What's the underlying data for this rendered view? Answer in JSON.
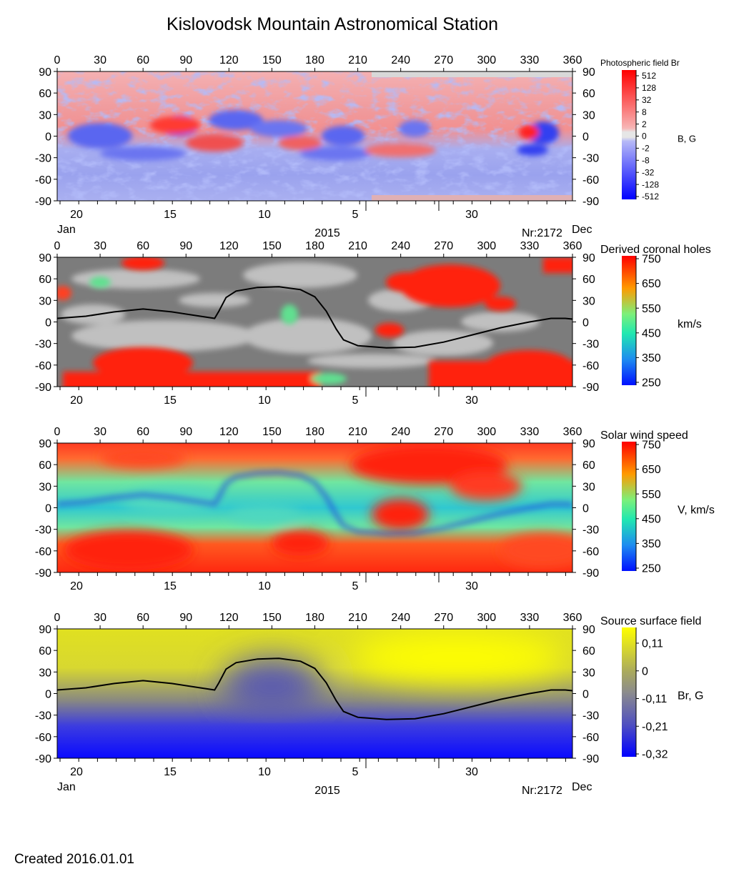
{
  "title": "Kislovodsk Mountain Astronomical Station",
  "created": "Created  2016.01.01",
  "colors": {
    "red": "#ff1a10",
    "blue": "#1a2cff",
    "gray_light": "#c0c0c0",
    "gray_dark": "#7a7a7a",
    "yellow": "#ffff00"
  },
  "chart_data": [
    {
      "type": "heatmap",
      "title": "Photospheric field Br",
      "unit_label": "B, G",
      "xlim": [
        0,
        360
      ],
      "ylim": [
        -90,
        90
      ],
      "x_ticks": [
        "0",
        "30",
        "60",
        "90",
        "120",
        "150",
        "180",
        "210",
        "240",
        "270",
        "300",
        "330",
        "360"
      ],
      "y_ticks": [
        "90",
        "60",
        "30",
        "0",
        "-30",
        "-60",
        "-90"
      ],
      "date_ticks": [
        "20",
        "15",
        "10",
        "5",
        "30"
      ],
      "month_left": "Jan",
      "month_right": "Dec",
      "year": "2015",
      "rotation": "Nr:2172",
      "colorbar": {
        "scale": "log-symmetric",
        "labels": [
          "512",
          "128",
          "32",
          "8",
          "2",
          "0",
          "-2",
          "-8",
          "-32",
          "-128",
          "-512"
        ]
      }
    },
    {
      "type": "heatmap",
      "title": "Derived coronal holes",
      "unit_label": "km/s",
      "xlim": [
        0,
        360
      ],
      "ylim": [
        -90,
        90
      ],
      "x_ticks": [
        "0",
        "30",
        "60",
        "90",
        "120",
        "150",
        "180",
        "210",
        "240",
        "270",
        "300",
        "330",
        "360"
      ],
      "y_ticks": [
        "90",
        "60",
        "30",
        "0",
        "-30",
        "-60",
        "-90"
      ],
      "date_ticks": [
        "20",
        "15",
        "10",
        "5",
        "30"
      ],
      "colorbar": {
        "range": [
          250,
          750
        ],
        "labels": [
          "750",
          "650",
          "550",
          "450",
          "350",
          "250"
        ]
      },
      "neutral_line": true
    },
    {
      "type": "heatmap",
      "title": "Solar wind speed",
      "unit_label": "V, km/s",
      "xlim": [
        0,
        360
      ],
      "ylim": [
        -90,
        90
      ],
      "x_ticks": [
        "0",
        "30",
        "60",
        "90",
        "120",
        "150",
        "180",
        "210",
        "240",
        "270",
        "300",
        "330",
        "360"
      ],
      "y_ticks": [
        "90",
        "60",
        "30",
        "0",
        "-30",
        "-60",
        "-90"
      ],
      "date_ticks": [
        "20",
        "15",
        "10",
        "5",
        "30"
      ],
      "colorbar": {
        "range": [
          250,
          750
        ],
        "labels": [
          "750",
          "650",
          "550",
          "450",
          "350",
          "250"
        ]
      }
    },
    {
      "type": "heatmap",
      "title": "Source surface field",
      "unit_label": "Br, G",
      "xlim": [
        0,
        360
      ],
      "ylim": [
        -90,
        90
      ],
      "x_ticks": [
        "0",
        "30",
        "60",
        "90",
        "120",
        "150",
        "180",
        "210",
        "240",
        "270",
        "300",
        "330",
        "360"
      ],
      "y_ticks": [
        "90",
        "60",
        "30",
        "0",
        "-30",
        "-60",
        "-90"
      ],
      "date_ticks": [
        "20",
        "15",
        "10",
        "5",
        "30"
      ],
      "month_left": "Jan",
      "month_right": "Dec",
      "year": "2015",
      "rotation": "Nr:2172",
      "colorbar": {
        "labels": [
          "0,11",
          "0",
          "-0,11",
          "-0,21",
          "-0,32"
        ]
      },
      "neutral_line": true
    }
  ],
  "neutral_line": {
    "lon": [
      0,
      20,
      40,
      60,
      80,
      100,
      110,
      113,
      118,
      125,
      140,
      155,
      170,
      180,
      188,
      195,
      200,
      210,
      230,
      250,
      270,
      290,
      310,
      330,
      345,
      355,
      360
    ],
    "lat": [
      5,
      8,
      14,
      18,
      14,
      8,
      5,
      15,
      34,
      43,
      48,
      49,
      45,
      35,
      15,
      -10,
      -25,
      -33,
      -36,
      -35,
      -28,
      -18,
      -8,
      0,
      5,
      5,
      4
    ]
  }
}
